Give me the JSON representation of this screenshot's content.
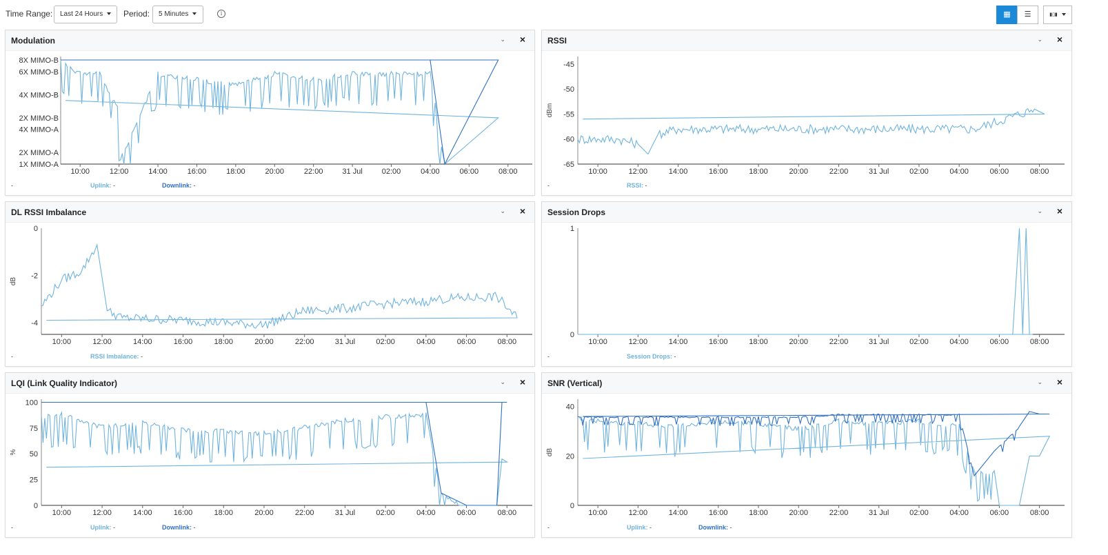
{
  "toolbar": {
    "time_range_label": "Time Range:",
    "time_range_value": "Last 24 Hours",
    "period_label": "Period:",
    "period_value": "5 Minutes",
    "info_icon": "info-icon",
    "view_buttons": [
      {
        "icon": "grid-view-icon",
        "glyph": "▦",
        "active": true
      },
      {
        "icon": "list-view-icon",
        "glyph": "☰",
        "active": false
      },
      {
        "icon": "chart-options-icon",
        "glyph": "▮▯▮",
        "active": false
      }
    ]
  },
  "colors": {
    "uplink": "#6fb3df",
    "downlink": "#2f6fc2",
    "active_button": "#1a8ad8"
  },
  "x_ticks": [
    "10:00",
    "12:00",
    "14:00",
    "16:00",
    "18:00",
    "20:00",
    "22:00",
    "31 Jul",
    "02:00",
    "04:00",
    "06:00",
    "08:00"
  ],
  "panels": [
    {
      "id": "modulation",
      "title": "Modulation",
      "collapse_glyph": "⌄",
      "close_glyph": "×",
      "footer_dash": "-",
      "legend": [
        {
          "label": "Uplink:",
          "value": "-",
          "color": "#6fb3df"
        },
        {
          "label": "Downlink:",
          "value": "-",
          "color": "#2f6fc2"
        }
      ]
    },
    {
      "id": "rssi",
      "title": "RSSI",
      "collapse_glyph": "⌄",
      "close_glyph": "×",
      "footer_dash": "-",
      "legend": [
        {
          "label": "RSSI:",
          "value": "-",
          "color": "#6fb3df"
        }
      ]
    },
    {
      "id": "dl-rssi-imbalance",
      "title": "DL RSSI Imbalance",
      "collapse_glyph": "⌄",
      "close_glyph": "×",
      "footer_dash": "-",
      "legend": [
        {
          "label": "RSSI Imbalance:",
          "value": "-",
          "color": "#6fb3df"
        }
      ]
    },
    {
      "id": "session-drops",
      "title": "Session Drops",
      "collapse_glyph": "⌄",
      "close_glyph": "×",
      "footer_dash": "-",
      "legend": [
        {
          "label": "Session Drops:",
          "value": "-",
          "color": "#6fb3df"
        }
      ]
    },
    {
      "id": "lqi",
      "title": "LQI (Link Quality Indicator)",
      "collapse_glyph": "⌄",
      "close_glyph": "×",
      "footer_dash": "-",
      "legend": [
        {
          "label": "Uplink:",
          "value": "-",
          "color": "#6fb3df"
        },
        {
          "label": "Downlink:",
          "value": "-",
          "color": "#2f6fc2"
        }
      ]
    },
    {
      "id": "snr-vertical",
      "title": "SNR (Vertical)",
      "collapse_glyph": "⌄",
      "close_glyph": "×",
      "footer_dash": "-",
      "legend": [
        {
          "label": "Uplink:",
          "value": "-",
          "color": "#6fb3df"
        },
        {
          "label": "Downlink:",
          "value": "-",
          "color": "#2f6fc2"
        }
      ]
    }
  ],
  "chart_data": [
    {
      "type": "line",
      "title": "Modulation",
      "xlabel": "",
      "ylabel": "",
      "y_categories": [
        "1X MIMO-A",
        "2X MIMO-A",
        "4X MIMO-A",
        "2X MIMO-B",
        "4X MIMO-B",
        "6X MIMO-B",
        "8X MIMO-B"
      ],
      "y_category_levels": [
        0,
        1,
        3,
        4,
        6,
        8,
        9
      ],
      "ylim": [
        0,
        9.3
      ],
      "grid": false,
      "x": [
        "09:00",
        "10:00",
        "11:00",
        "11:55",
        "12:00",
        "14:00",
        "16:00",
        "18:00",
        "20:00",
        "22:00",
        "00:00",
        "02:00",
        "04:00",
        "04:45",
        "07:30",
        "09:15"
      ],
      "series": [
        {
          "name": "Uplink",
          "values": [
            9,
            8,
            8,
            5,
            0.3,
            8,
            7.5,
            7,
            8,
            7.5,
            8,
            8,
            8,
            0,
            4,
            5.5
          ]
        },
        {
          "name": "Downlink",
          "values": [
            9,
            9,
            9,
            9,
            9,
            9,
            9,
            9,
            9,
            9,
            9,
            9,
            9,
            0,
            9,
            9
          ]
        }
      ]
    },
    {
      "type": "line",
      "title": "RSSI",
      "xlabel": "",
      "ylabel": "dBm",
      "y_ticks": [
        -45,
        -50,
        -55,
        -60,
        -65
      ],
      "ylim": [
        -65,
        -43.5
      ],
      "grid": false,
      "x": [
        "09:00",
        "10:00",
        "11:00",
        "12:00",
        "12:30",
        "13:00",
        "14:00",
        "18:00",
        "22:00",
        "02:00",
        "04:45",
        "07:45",
        "08:15",
        "09:15"
      ],
      "series": [
        {
          "name": "RSSI",
          "values": [
            -60,
            -60,
            -60,
            -61,
            -63,
            -59,
            -58,
            -58,
            -58,
            -58,
            -58,
            -54,
            -55,
            -56
          ]
        }
      ]
    },
    {
      "type": "line",
      "title": "DL RSSI Imbalance",
      "xlabel": "",
      "ylabel": "dB",
      "y_ticks": [
        0,
        -2,
        -4
      ],
      "ylim": [
        -4.5,
        0
      ],
      "grid": false,
      "x": [
        "09:00",
        "10:00",
        "11:00",
        "11:45",
        "12:15",
        "13:00",
        "16:00",
        "20:00",
        "22:00",
        "00:00",
        "02:00",
        "04:00",
        "04:45",
        "07:30",
        "08:30",
        "09:15"
      ],
      "series": [
        {
          "name": "RSSI Imbalance",
          "values": [
            -3.3,
            -2.2,
            -1.8,
            -0.7,
            -3.5,
            -3.8,
            -3.9,
            -4.1,
            -3.5,
            -3.4,
            -3.2,
            -3.1,
            -3.0,
            -2.9,
            -3.8,
            -3.9
          ]
        }
      ]
    },
    {
      "type": "line",
      "title": "Session Drops",
      "xlabel": "",
      "ylabel": "",
      "y_ticks": [
        1,
        0
      ],
      "ylim": [
        0,
        1
      ],
      "grid": false,
      "x": [
        "09:00",
        "06:40",
        "07:00",
        "07:10",
        "07:20",
        "07:30",
        "07:40",
        "09:15"
      ],
      "series": [
        {
          "name": "Session Drops",
          "values": [
            0,
            0,
            1,
            0,
            1,
            0,
            0,
            0
          ]
        }
      ]
    },
    {
      "type": "line",
      "title": "LQI (Link Quality Indicator)",
      "xlabel": "",
      "ylabel": "%",
      "y_ticks": [
        100,
        75,
        50,
        25,
        0
      ],
      "ylim": [
        0,
        103
      ],
      "grid": false,
      "x": [
        "09:00",
        "10:00",
        "12:00",
        "14:00",
        "16:00",
        "18:00",
        "20:00",
        "22:00",
        "00:00",
        "02:00",
        "04:00",
        "04:45",
        "06:00",
        "07:30",
        "07:45",
        "08:00",
        "09:15"
      ],
      "series": [
        {
          "name": "Uplink",
          "values": [
            88,
            90,
            78,
            82,
            75,
            74,
            72,
            78,
            85,
            88,
            90,
            12,
            0,
            0,
            45,
            42,
            37
          ]
        },
        {
          "name": "Downlink",
          "values": [
            100,
            100,
            100,
            100,
            100,
            100,
            100,
            100,
            100,
            100,
            100,
            12,
            0,
            0,
            100,
            100,
            100
          ]
        }
      ]
    },
    {
      "type": "line",
      "title": "SNR (Vertical)",
      "xlabel": "",
      "ylabel": "dB",
      "y_ticks": [
        40,
        20,
        0
      ],
      "ylim": [
        0,
        43
      ],
      "grid": false,
      "x": [
        "09:00",
        "10:00",
        "12:00",
        "14:00",
        "16:00",
        "18:00",
        "20:00",
        "22:00",
        "00:00",
        "02:00",
        "04:00",
        "04:45",
        "05:45",
        "06:00",
        "07:00",
        "07:30",
        "08:00",
        "08:30",
        "09:15"
      ],
      "series": [
        {
          "name": "Uplink",
          "values": [
            36,
            35,
            34,
            33,
            35,
            34,
            32,
            35,
            34,
            35,
            33,
            14,
            14,
            0,
            0,
            20,
            20,
            28,
            19
          ]
        },
        {
          "name": "Downlink",
          "values": [
            36,
            36,
            36,
            36,
            36,
            36,
            36,
            37,
            37,
            37,
            37,
            12,
            22,
            24,
            32,
            38,
            37,
            37,
            36
          ]
        }
      ]
    }
  ]
}
